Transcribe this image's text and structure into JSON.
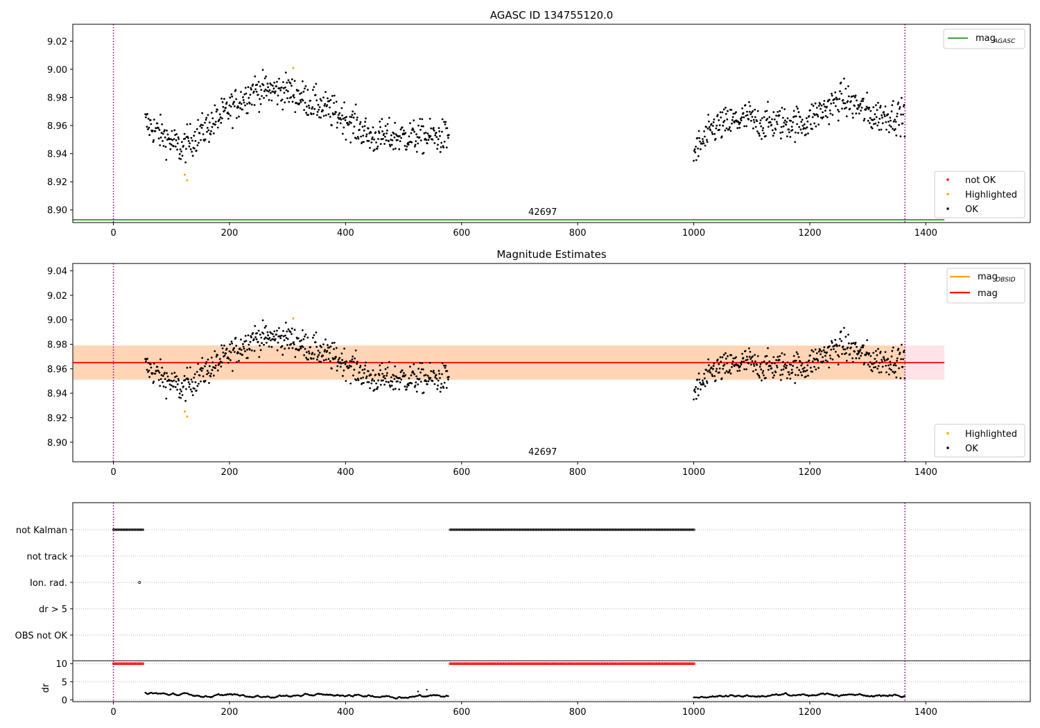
{
  "chart_data": [
    {
      "type": "scatter",
      "title": "AGASC ID 134755120.0",
      "xlim": [
        -70,
        1580
      ],
      "ylim": [
        8.891,
        9.032
      ],
      "x_ticks": [
        0,
        200,
        400,
        600,
        800,
        1000,
        1200,
        1400
      ],
      "y_ticks": [
        8.9,
        8.92,
        8.94,
        8.96,
        8.98,
        9.0,
        9.02
      ],
      "obsid_label": "42697",
      "obsid_label_x": 680,
      "vlines": [
        0,
        1364
      ],
      "mag_agasc": 8.893,
      "mag_agasc_xrange": [
        -70,
        1432
      ],
      "highlighted_points": [
        [
          123,
          8.925
        ],
        [
          127,
          8.921
        ],
        [
          310,
          9.001
        ]
      ],
      "legend_lines": [
        {
          "name": "mag",
          "subscript": "AGASC",
          "color": "#008000"
        }
      ],
      "legend_points": [
        {
          "name": "not OK",
          "color": "#ff0000"
        },
        {
          "name": "Highlighted",
          "color": "#ffa500"
        },
        {
          "name": "OK",
          "color": "#000000"
        }
      ],
      "legend_placement": [
        "top-right",
        "bottom-right"
      ]
    },
    {
      "type": "scatter",
      "title": "Magnitude Estimates",
      "xlim": [
        -70,
        1580
      ],
      "ylim": [
        8.884,
        9.046
      ],
      "x_ticks": [
        0,
        200,
        400,
        600,
        800,
        1000,
        1200,
        1400
      ],
      "y_ticks": [
        8.9,
        8.92,
        8.94,
        8.96,
        8.98,
        9.0,
        9.02,
        9.04
      ],
      "obsid_label": "42697",
      "obsid_label_x": 680,
      "vlines": [
        0,
        1364
      ],
      "mag_obsid": 8.965,
      "mag_obsid_band": [
        8.951,
        8.979
      ],
      "mag_obsid_xrange": [
        -70,
        1364
      ],
      "mag": 8.965,
      "mag_band": [
        8.951,
        8.979
      ],
      "mag_xrange": [
        -70,
        1432
      ],
      "highlighted_points": [
        [
          123,
          8.925
        ],
        [
          127,
          8.921
        ],
        [
          310,
          9.001
        ]
      ],
      "legend_lines": [
        {
          "name": "mag",
          "subscript": "OBSID",
          "color": "#ffa500"
        },
        {
          "name": "mag",
          "subscript": "",
          "color": "#ff0000"
        }
      ],
      "legend_points": [
        {
          "name": "Highlighted",
          "color": "#ffa500"
        },
        {
          "name": "OK",
          "color": "#000000"
        }
      ],
      "legend_placement": [
        "top-right",
        "bottom-right"
      ]
    },
    {
      "type": "scatter",
      "title": "",
      "xlim": [
        -70,
        1580
      ],
      "categories": [
        "not Kalman",
        "not track",
        "Ion. rad.",
        "dr > 5",
        "OBS not OK"
      ],
      "flag_ranges": {
        "not Kalman": [
          [
            0,
            52
          ],
          [
            580,
            1002
          ]
        ],
        "Ion. rad.": [
          [
            45,
            45
          ]
        ]
      },
      "vlines": [
        0,
        1364
      ]
    },
    {
      "type": "scatter",
      "title": "",
      "ylabel": "dr",
      "xlim": [
        -70,
        1580
      ],
      "ylim": [
        -0.5,
        10.8
      ],
      "x_ticks": [
        0,
        200,
        400,
        600,
        800,
        1000,
        1200,
        1400
      ],
      "y_ticks": [
        0,
        5,
        10
      ],
      "dr_capped": 10,
      "capped_ranges": [
        [
          0,
          52
        ],
        [
          580,
          1002
        ]
      ],
      "dr_outliers": [
        [
          525,
          2.3
        ],
        [
          540,
          2.8
        ]
      ],
      "vlines": [
        0,
        1364
      ]
    }
  ]
}
